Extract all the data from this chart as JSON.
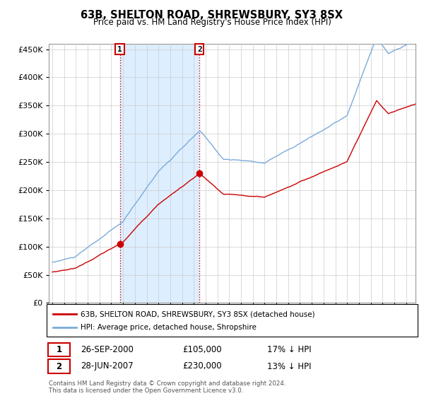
{
  "title": "63B, SHELTON ROAD, SHREWSBURY, SY3 8SX",
  "subtitle": "Price paid vs. HM Land Registry's House Price Index (HPI)",
  "legend_line1": "63B, SHELTON ROAD, SHREWSBURY, SY3 8SX (detached house)",
  "legend_line2": "HPI: Average price, detached house, Shropshire",
  "annotation1_label": "1",
  "annotation1_date": "26-SEP-2000",
  "annotation1_price": "£105,000",
  "annotation1_hpi": "17% ↓ HPI",
  "annotation2_label": "2",
  "annotation2_date": "28-JUN-2007",
  "annotation2_price": "£230,000",
  "annotation2_hpi": "13% ↓ HPI",
  "footer": "Contains HM Land Registry data © Crown copyright and database right 2024.\nThis data is licensed under the Open Government Licence v3.0.",
  "sale1_x": 2000.73,
  "sale1_y": 105000,
  "sale2_x": 2007.48,
  "sale2_y": 230000,
  "hpi_color": "#7aabdb",
  "price_color": "#cc0000",
  "shade_color": "#ddeeff",
  "ylim": [
    0,
    460000
  ],
  "xlim_left": 1994.7,
  "xlim_right": 2025.8,
  "yticks": [
    0,
    50000,
    100000,
    150000,
    200000,
    250000,
    300000,
    350000,
    400000,
    450000
  ],
  "background_color": "#ffffff",
  "grid_color": "#cccccc",
  "annotation_box_color": "#cc0000"
}
